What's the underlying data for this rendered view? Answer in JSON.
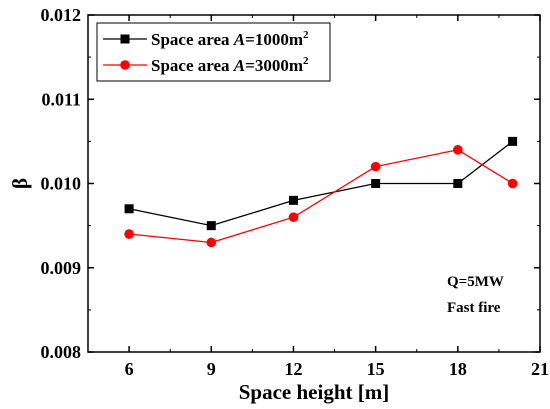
{
  "chart_data": {
    "type": "line",
    "xlabel": "Space height [m]",
    "ylabel": "β",
    "xlim": [
      4.5,
      21
    ],
    "ylim": [
      0.008,
      0.012
    ],
    "xticks": [
      6,
      9,
      12,
      15,
      18,
      21
    ],
    "yticks": [
      0.008,
      0.009,
      0.01,
      0.011,
      0.012
    ],
    "xtick_labels": [
      "6",
      "9",
      "12",
      "15",
      "18",
      "21"
    ],
    "ytick_labels": [
      "0.008",
      "0.009",
      "0.010",
      "0.011",
      "0.012"
    ],
    "grid": false,
    "legend_position": "top-left",
    "series": [
      {
        "name_prefix": "Space area ",
        "name_var": "A",
        "name_mid": "=1000m",
        "name_sup": "2",
        "color": "#000000",
        "marker": "square",
        "x": [
          6,
          9,
          12,
          15,
          18,
          20
        ],
        "y": [
          0.0097,
          0.0095,
          0.0098,
          0.01,
          0.01,
          0.0105
        ]
      },
      {
        "name_prefix": "Space area ",
        "name_var": "A",
        "name_mid": "=3000m",
        "name_sup": "2",
        "color": "#ff0000",
        "marker": "circle",
        "x": [
          6,
          9,
          12,
          15,
          18,
          20
        ],
        "y": [
          0.0094,
          0.0093,
          0.0096,
          0.0102,
          0.0104,
          0.01
        ]
      }
    ],
    "annotations": [
      "Q=5MW",
      "Fast fire"
    ]
  }
}
